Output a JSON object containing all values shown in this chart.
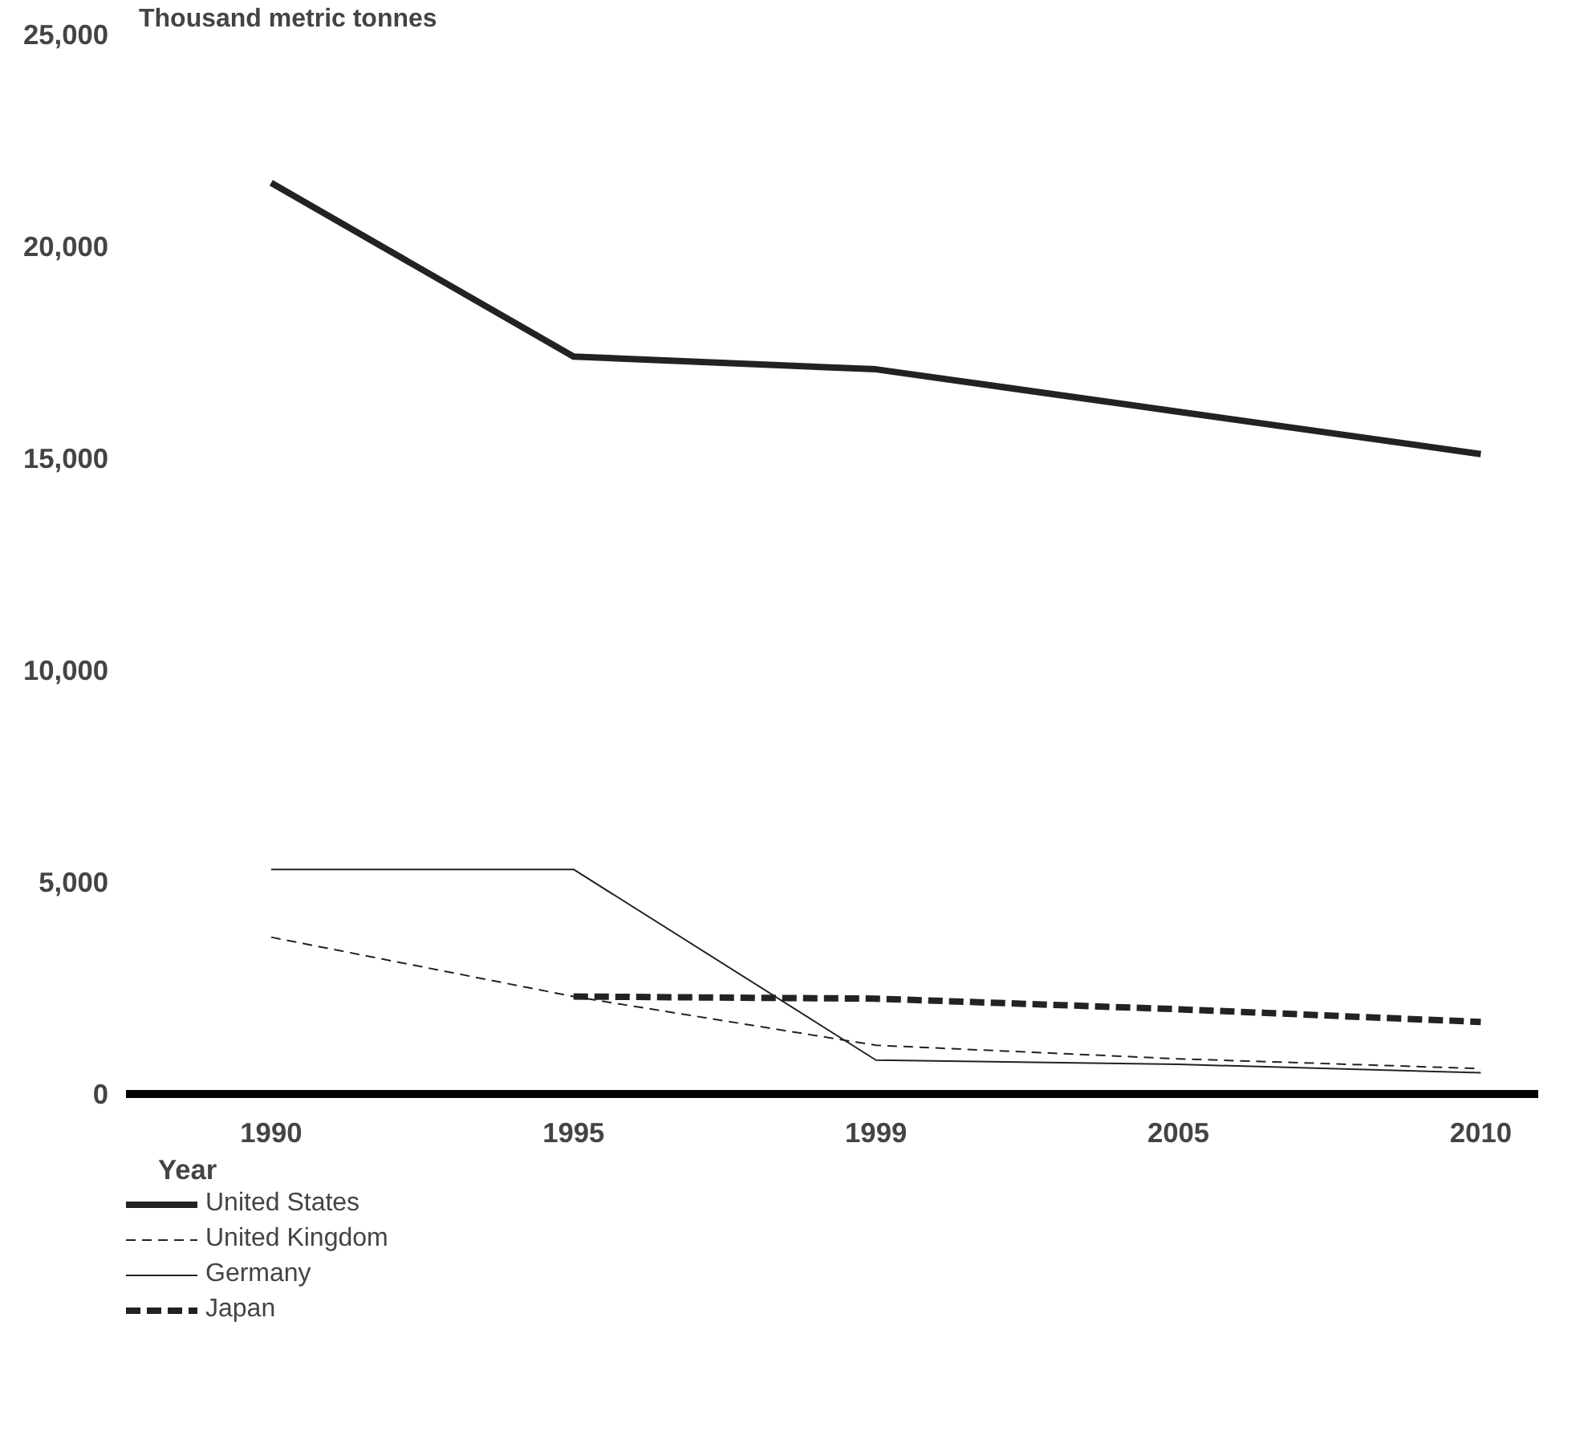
{
  "chart_data": {
    "type": "line",
    "ylabel": "Thousand metric tonnes",
    "xlabel": "Year",
    "categories": [
      "1990",
      "1995",
      "1999",
      "2005",
      "2010"
    ],
    "series": [
      {
        "name": "United States",
        "color": "#222222",
        "line_style": "solid",
        "values": [
          21500,
          17400,
          17100,
          16100,
          15100
        ]
      },
      {
        "name": "United Kingdom",
        "color": "#222222",
        "line_style": "dashed",
        "values": [
          3700,
          2300,
          1150,
          830,
          600
        ]
      },
      {
        "name": "Germany",
        "color": "#222222",
        "line_style": "solid",
        "values": [
          5300,
          5300,
          800,
          700,
          500
        ]
      },
      {
        "name": "Japan",
        "color": "#222222",
        "line_style": "dashed",
        "values": [
          null,
          2300,
          2250,
          2000,
          1700
        ]
      }
    ],
    "ylim": [
      0,
      25000
    ],
    "yticks": [
      0,
      {
        "value": 5000,
        "label": "5,000"
      },
      {
        "value": 10000,
        "label": "10,000"
      },
      {
        "value": 15000,
        "label": "15,000"
      },
      {
        "value": 20000,
        "label": "20,000"
      },
      {
        "value": 25000,
        "label": "25,000"
      }
    ],
    "grid": false,
    "legend": "bottom",
    "marker": "none"
  }
}
